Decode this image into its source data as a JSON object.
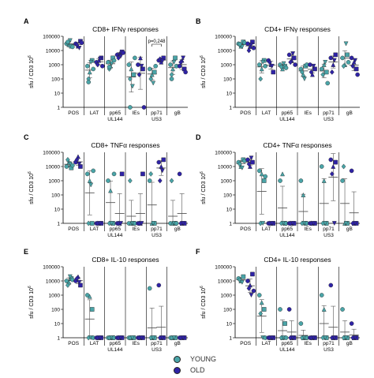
{
  "figure": {
    "y_axis_label": "sfu / CD3 10",
    "y_axis_label_superscript": "6"
  },
  "legend": {
    "items": [
      {
        "label": "YOUNG",
        "color": "#4aa5a8"
      },
      {
        "label": "OLD",
        "color": "#2f23a6"
      }
    ]
  },
  "colors": {
    "young": "#4aa5a8",
    "old": "#2f23a6",
    "axis": "#000000",
    "mean_line": "#555555"
  },
  "chart_data": [
    {
      "panel": "A",
      "title": "CD8+ IFNγ responses",
      "type": "scatter",
      "yscale": "log",
      "ylim": [
        1,
        100000
      ],
      "yticks": [
        "1",
        "10",
        "100",
        "1000",
        "10000",
        "100000"
      ],
      "categories": [
        "POS",
        "LAT",
        "pp65\nUL144",
        "IEs",
        "pp71\nUS3",
        "gB"
      ],
      "annotation": {
        "text": "p=0,248",
        "between": "pp71 US3 young vs old"
      },
      "series": [
        {
          "name": "YOUNG",
          "groups": [
            [
              30000,
              25000,
              20000,
              35000,
              50000,
              18000,
              40000
            ],
            [
              800,
              300,
              2000,
              100,
              1500,
              500,
              60
            ],
            [
              1500,
              800,
              3000,
              500,
              1200,
              2000,
              700
            ],
            [
              1000,
              500,
              200,
              100,
              30,
              3000,
              1
            ],
            [
              500,
              200,
              300,
              100,
              50,
              800
            ],
            [
              1000,
              500,
              3000,
              200,
              1500,
              800,
              100
            ]
          ]
        },
        {
          "name": "OLD",
          "groups": [
            [
              30000,
              20000,
              45000,
              25000,
              15000,
              35000
            ],
            [
              1500,
              2000,
              3000,
              1000,
              2500,
              800
            ],
            [
              5000,
              6000,
              8000,
              3000,
              4000,
              7000
            ],
            [
              1000,
              3000,
              500,
              200,
              800,
              1
            ],
            [
              2000,
              1500,
              3000,
              2500,
              1800
            ],
            [
              800,
              2000,
              500,
              1500,
              3000,
              300
            ]
          ]
        }
      ]
    },
    {
      "panel": "B",
      "title": "CD4+ IFNγ responses",
      "type": "scatter",
      "yscale": "log",
      "ylim": [
        1,
        100000
      ],
      "yticks": [
        "1",
        "10",
        "100",
        "1000",
        "10000",
        "100000"
      ],
      "categories": [
        "POS",
        "LAT",
        "pp65\nUL144",
        "IEs",
        "pp71\nUS3",
        "gB"
      ],
      "series": [
        {
          "name": "YOUNG",
          "groups": [
            [
              30000,
              20000,
              40000,
              25000,
              18000,
              35000,
              28000
            ],
            [
              1000,
              500,
              2000,
              100,
              1500,
              800
            ],
            [
              1000,
              500,
              800,
              700,
              1200,
              600
            ],
            [
              500,
              200,
              800,
              300,
              100,
              1000
            ],
            [
              500,
              1000,
              300,
              200,
              1500,
              50
            ],
            [
              3000,
              1000,
              5000,
              800,
              30000,
              1500
            ]
          ]
        },
        {
          "name": "OLD",
          "groups": [
            [
              30000,
              20000,
              40000,
              10000,
              25000,
              15000
            ],
            [
              2000,
              1000,
              300,
              1500,
              800
            ],
            [
              5000,
              2000,
              3000,
              1500,
              6000,
              1000
            ],
            [
              1000,
              200,
              500,
              300,
              800
            ],
            [
              3000,
              1000,
              5000,
              300,
              2000
            ],
            [
              3000,
              1500,
              500,
              800,
              2000,
              200
            ]
          ]
        }
      ]
    },
    {
      "panel": "C",
      "title": "CD8+ TNFα responses",
      "type": "scatter",
      "yscale": "log",
      "ylim": [
        1,
        100000
      ],
      "yticks": [
        "1",
        "10",
        "100",
        "1000",
        "10000",
        "100000"
      ],
      "categories": [
        "POS",
        "LAT",
        "pp65\nUL144",
        "IEs",
        "pp71\nUS3",
        "gB"
      ],
      "series": [
        {
          "name": "YOUNG",
          "groups": [
            [
              10000,
              20000,
              8000,
              30000,
              15000,
              12000
            ],
            [
              3000,
              1000,
              1,
              1,
              500,
              5000
            ],
            [
              1000,
              200,
              1,
              1,
              1,
              3000
            ],
            [
              1,
              1,
              1,
              1000,
              1,
              1
            ],
            [
              1000,
              1,
              1,
              3000,
              1
            ],
            [
              1,
              1,
              1,
              1000,
              1,
              1
            ]
          ]
        },
        {
          "name": "OLD",
          "groups": [
            [
              20000,
              50000,
              10000,
              30000,
              15000
            ],
            [
              1,
              1,
              1,
              1,
              1
            ],
            [
              1,
              1,
              3000,
              1,
              1
            ],
            [
              1,
              1,
              3000,
              1,
              1
            ],
            [
              20000,
              10000,
              30000,
              1000,
              5000
            ],
            [
              3000,
              1,
              1,
              1,
              1
            ]
          ]
        }
      ]
    },
    {
      "panel": "D",
      "title": "CD4+ TNFα responses",
      "type": "scatter",
      "yscale": "log",
      "ylim": [
        1,
        100000
      ],
      "yticks": [
        "1",
        "10",
        "100",
        "1000",
        "10000",
        "100000"
      ],
      "categories": [
        "POS",
        "LAT",
        "pp65\nUL144",
        "IEs",
        "pp71\nUS3",
        "gB"
      ],
      "series": [
        {
          "name": "YOUNG",
          "groups": [
            [
              20000,
              10000,
              30000,
              15000,
              8000,
              25000
            ],
            [
              5000,
              3000,
              1000,
              1,
              1,
              2000
            ],
            [
              1000,
              3000,
              1,
              1,
              1,
              1
            ],
            [
              1000,
              100,
              1,
              1,
              1,
              1
            ],
            [
              10000,
              1000,
              1,
              1,
              1
            ],
            [
              1000,
              1,
              1,
              10000,
              1
            ]
          ]
        },
        {
          "name": "OLD",
          "groups": [
            [
              30000,
              10000,
              20000,
              15000,
              40000
            ],
            [
              1,
              1,
              1,
              1,
              1
            ],
            [
              1,
              1,
              1,
              1,
              1
            ],
            [
              1,
              1,
              1,
              1,
              1
            ],
            [
              30000,
              10000,
              20000,
              3000,
              1
            ],
            [
              5000,
              1,
              1,
              1,
              1
            ]
          ]
        }
      ]
    },
    {
      "panel": "E",
      "title": "CD8+ IL-10 responses",
      "type": "scatter",
      "yscale": "log",
      "ylim": [
        1,
        100000
      ],
      "yticks": [
        "1",
        "10",
        "100",
        "1000",
        "10000",
        "100000"
      ],
      "categories": [
        "POS",
        "LAT",
        "pp65\nUL144",
        "IEs",
        "pp71\nUS3",
        "gB"
      ],
      "series": [
        {
          "name": "YOUNG",
          "groups": [
            [
              10000,
              8000,
              15000,
              5000,
              20000,
              12000
            ],
            [
              1000,
              800,
              100,
              1,
              1,
              1
            ],
            [
              1,
              1,
              1,
              1,
              1,
              1
            ],
            [
              1,
              1,
              1,
              1,
              1
            ],
            [
              3000,
              1,
              1,
              1,
              1
            ],
            [
              1,
              1,
              1,
              1,
              1
            ]
          ]
        },
        {
          "name": "OLD",
          "groups": [
            [
              10000,
              20000,
              5000,
              15000,
              8000
            ],
            [
              1,
              1,
              1,
              1,
              1
            ],
            [
              1,
              1,
              1,
              1,
              1
            ],
            [
              1,
              1,
              1,
              1,
              1
            ],
            [
              5000,
              1,
              1,
              1,
              1
            ],
            [
              1,
              1,
              1,
              1,
              1
            ]
          ]
        }
      ]
    },
    {
      "panel": "F",
      "title": "CD4+ IL-10 responses",
      "type": "scatter",
      "yscale": "log",
      "ylim": [
        1,
        100000
      ],
      "yticks": [
        "1",
        "10",
        "100",
        "1000",
        "10000",
        "100000"
      ],
      "categories": [
        "POS",
        "LAT",
        "pp65\nUL144",
        "IEs",
        "pp71\nUS3",
        "gB"
      ],
      "series": [
        {
          "name": "YOUNG",
          "groups": [
            [
              15000,
              10000,
              20000,
              12000,
              8000
            ],
            [
              1000,
              300,
              100,
              50,
              1,
              1
            ],
            [
              100,
              1,
              10,
              1,
              1,
              1
            ],
            [
              10,
              1,
              1,
              1,
              1,
              1
            ],
            [
              1000,
              100,
              1,
              1,
              1
            ],
            [
              100,
              1,
              1,
              1,
              1
            ]
          ]
        },
        {
          "name": "OLD",
          "groups": [
            [
              10000,
              5000,
              30000,
              3000,
              1000,
              2000
            ],
            [
              1,
              1,
              1,
              1,
              1
            ],
            [
              100,
              1,
              1,
              1,
              1
            ],
            [
              1,
              1,
              1,
              1,
              1
            ],
            [
              5000,
              1,
              1,
              1,
              1
            ],
            [
              10,
              1,
              1,
              1,
              1
            ]
          ]
        }
      ]
    }
  ]
}
